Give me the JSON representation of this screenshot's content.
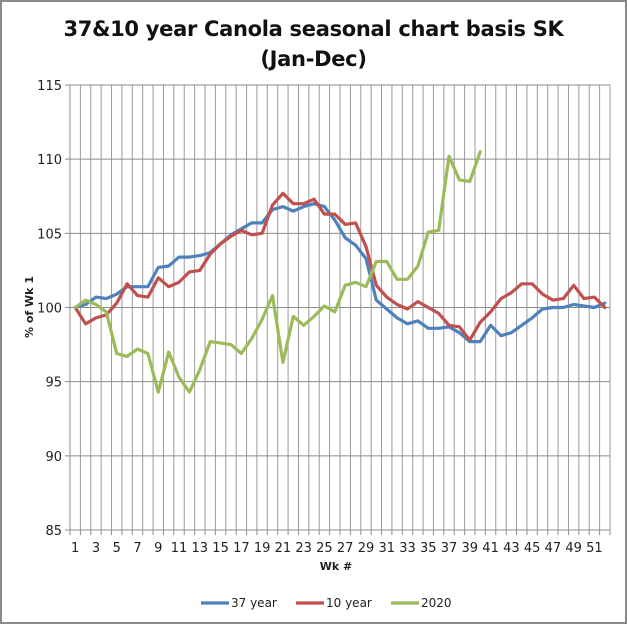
{
  "chart_data": {
    "type": "line",
    "title": "37&10 year Canola seasonal chart basis SK (Jan-Dec)",
    "xlabel": "Wk #",
    "ylabel": "% of Wk 1",
    "ylim": [
      85,
      115
    ],
    "yticks": [
      85,
      90,
      95,
      100,
      105,
      110,
      115
    ],
    "x": [
      1,
      2,
      3,
      4,
      5,
      6,
      7,
      8,
      9,
      10,
      11,
      12,
      13,
      14,
      15,
      16,
      17,
      18,
      19,
      20,
      21,
      22,
      23,
      24,
      25,
      26,
      27,
      28,
      29,
      30,
      31,
      32,
      33,
      34,
      35,
      36,
      37,
      38,
      39,
      40,
      41,
      42,
      43,
      44,
      45,
      46,
      47,
      48,
      49,
      50,
      51,
      52
    ],
    "xtick_labels": [
      "1",
      "3",
      "5",
      "7",
      "9",
      "11",
      "13",
      "15",
      "17",
      "19",
      "21",
      "23",
      "25",
      "27",
      "29",
      "31",
      "33",
      "35",
      "37",
      "39",
      "41",
      "43",
      "45",
      "47",
      "49",
      "51"
    ],
    "grid": true,
    "legend_position": "bottom",
    "series": [
      {
        "name": "37 year",
        "color": "#4F81BD",
        "values": [
          100.0,
          100.2,
          100.7,
          100.6,
          100.9,
          101.4,
          101.4,
          101.4,
          102.7,
          102.8,
          103.4,
          103.4,
          103.5,
          103.7,
          104.3,
          104.9,
          105.3,
          105.7,
          105.7,
          106.6,
          106.8,
          106.5,
          106.8,
          107.0,
          106.8,
          105.9,
          104.7,
          104.2,
          103.3,
          100.5,
          99.9,
          99.3,
          98.9,
          99.1,
          98.6,
          98.6,
          98.7,
          98.3,
          97.7,
          97.7,
          98.8,
          98.1,
          98.3,
          98.8,
          99.3,
          99.9,
          100.0,
          100.0,
          100.2,
          100.1,
          100.0,
          100.3
        ]
      },
      {
        "name": "10 year",
        "color": "#C0504D",
        "values": [
          100.0,
          98.9,
          99.3,
          99.5,
          100.3,
          101.6,
          100.8,
          100.7,
          102.0,
          101.4,
          101.7,
          102.4,
          102.5,
          103.6,
          104.3,
          104.8,
          105.2,
          104.9,
          105.0,
          106.9,
          107.7,
          107.0,
          107.0,
          107.3,
          106.3,
          106.3,
          105.6,
          105.7,
          104.1,
          101.5,
          100.7,
          100.2,
          99.9,
          100.4,
          100.0,
          99.6,
          98.8,
          98.7,
          97.8,
          99.0,
          99.7,
          100.6,
          101.0,
          101.6,
          101.6,
          100.9,
          100.5,
          100.6,
          101.5,
          100.6,
          100.7,
          100.0
        ]
      },
      {
        "name": "2020",
        "color": "#9BBB59",
        "values": [
          100.0,
          100.5,
          100.2,
          99.7,
          96.9,
          96.7,
          97.2,
          96.9,
          94.3,
          97.0,
          95.3,
          94.3,
          95.8,
          97.7,
          97.6,
          97.5,
          96.9,
          97.9,
          99.2,
          100.8,
          96.3,
          99.4,
          98.8,
          99.4,
          100.1,
          99.7,
          101.5,
          101.7,
          101.4,
          103.1,
          103.1,
          101.9,
          101.9,
          102.8,
          105.1,
          105.2,
          110.2,
          108.6,
          108.5,
          110.5
        ]
      }
    ]
  }
}
